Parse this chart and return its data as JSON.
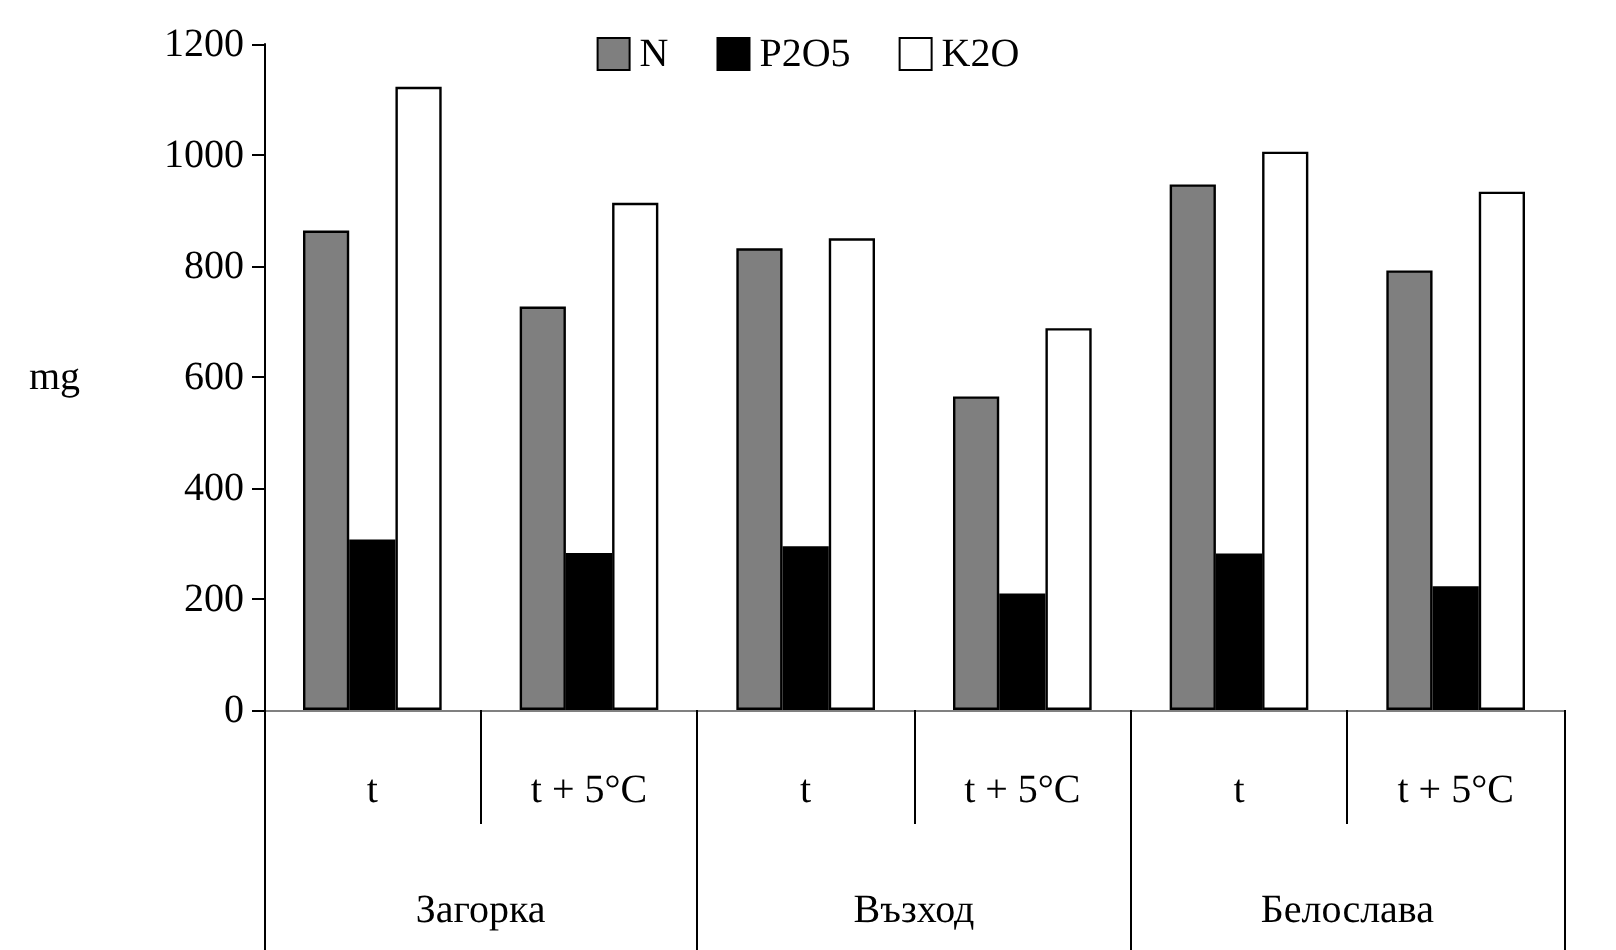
{
  "chart_data": {
    "type": "bar",
    "ylabel": "mg",
    "categories": [
      "t",
      "t + 5°C",
      "t",
      "t + 5°C",
      "t",
      "t + 5°C"
    ],
    "annotations": [
      "Загорка",
      "Възход",
      "Белослава"
    ],
    "series": [
      {
        "name": "N",
        "color": "#7f7f7f",
        "values": [
          864,
          727,
          832,
          565,
          947,
          792
        ]
      },
      {
        "name": "P2O5",
        "color": "#000000",
        "values": [
          307,
          283,
          295,
          210,
          282,
          223
        ]
      },
      {
        "name": "K2O",
        "color": "#ffffff",
        "values": [
          1123,
          914,
          850,
          688,
          1006,
          934
        ]
      }
    ],
    "ylim": [
      0,
      1200
    ],
    "yticks": [
      0,
      200,
      400,
      600,
      800,
      1000,
      1200
    ],
    "grid": false,
    "legend": "top"
  }
}
